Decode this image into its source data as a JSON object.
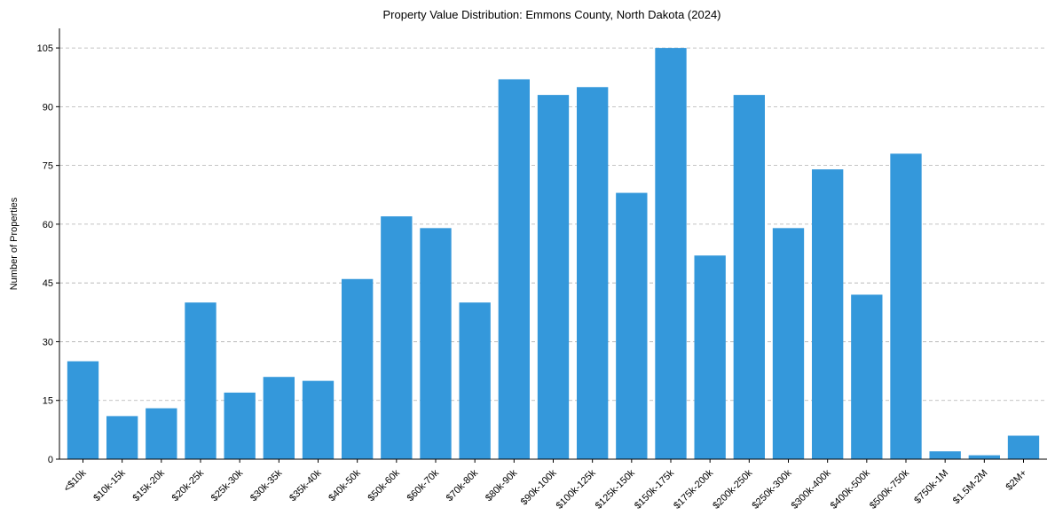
{
  "chart_data": {
    "type": "bar",
    "title": "Property Value Distribution: Emmons County, North Dakota (2024)",
    "xlabel": "",
    "ylabel": "Number of Properties",
    "categories": [
      "<$10k",
      "$10k-15k",
      "$15k-20k",
      "$20k-25k",
      "$25k-30k",
      "$30k-35k",
      "$35k-40k",
      "$40k-50k",
      "$50k-60k",
      "$60k-70k",
      "$70k-80k",
      "$80k-90k",
      "$90k-100k",
      "$100k-125k",
      "$125k-150k",
      "$150k-175k",
      "$175k-200k",
      "$200k-250k",
      "$250k-300k",
      "$300k-400k",
      "$400k-500k",
      "$500k-750k",
      "$750k-1M",
      "$1.5M-2M",
      "$2M+"
    ],
    "values": [
      25,
      11,
      13,
      40,
      17,
      21,
      20,
      46,
      62,
      59,
      40,
      97,
      93,
      95,
      68,
      105,
      52,
      93,
      59,
      74,
      42,
      78,
      2,
      1,
      6
    ],
    "ylim": [
      0,
      110
    ],
    "yticks": [
      0,
      15,
      30,
      45,
      60,
      75,
      90,
      105
    ],
    "grid": "y-dashed",
    "bar_color": "#3498db"
  }
}
